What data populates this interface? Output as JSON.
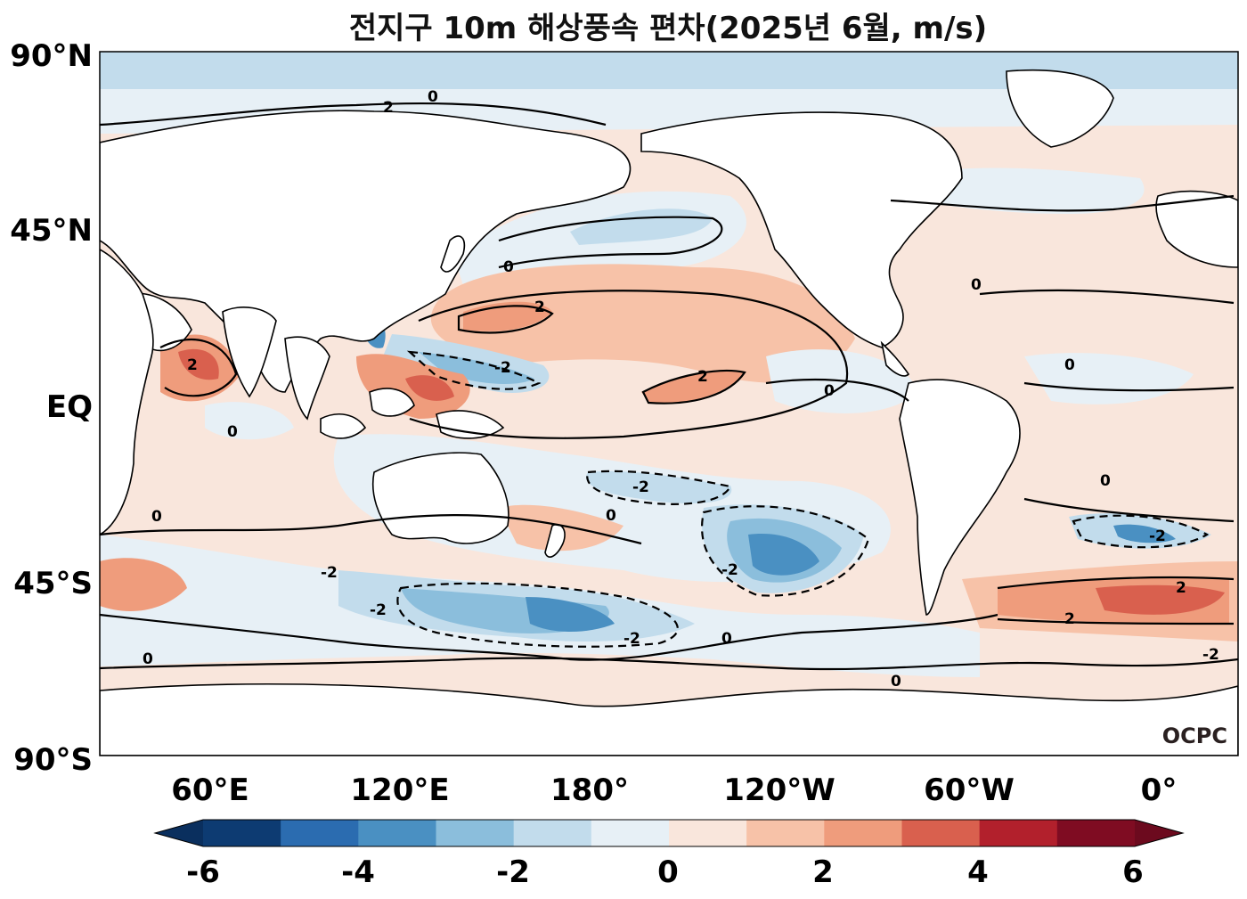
{
  "title": "전지구 10m 해상풍속 편차(2025년 6월, m/s)",
  "credit": "OCPC",
  "map": {
    "projection": "plate-carree",
    "central_longitude": 180,
    "lat_ticks": [
      "90°N",
      "45°N",
      "EQ",
      "45°S",
      "90°S"
    ],
    "lon_ticks": [
      "60°E",
      "120°E",
      "180°",
      "120°W",
      "60°W",
      "0°"
    ]
  },
  "colorbar": {
    "ticks": [
      "-6",
      "-4",
      "-2",
      "0",
      "2",
      "4",
      "6"
    ],
    "levels": [
      -6,
      -5,
      -4,
      -3,
      -2,
      -1,
      0,
      1,
      2,
      3,
      4,
      5,
      6
    ],
    "colors": [
      "#0d3b72",
      "#2b6cb0",
      "#4a90c2",
      "#8bbedc",
      "#c2dcec",
      "#e7f0f6",
      "#f9e6dc",
      "#f7c2a8",
      "#ef9c7c",
      "#d9604e",
      "#b2202c",
      "#7f0c22"
    ],
    "extend_low_color": "#0a2f5e",
    "extend_high_color": "#6c0a1e"
  },
  "contour_labels": [
    "0",
    "2",
    "-2"
  ]
}
